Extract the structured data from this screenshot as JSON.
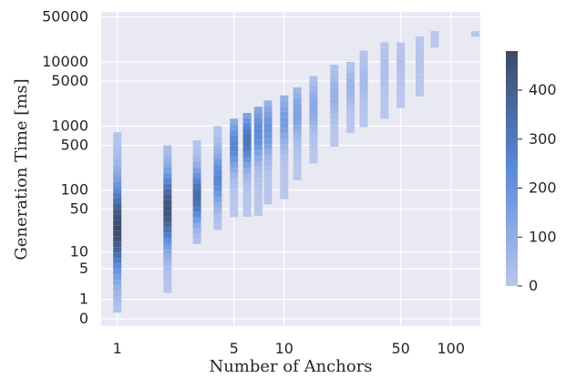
{
  "chart_data": {
    "type": "heatmap",
    "title": "",
    "xlabel": "Number of Anchors",
    "ylabel": "Generation Time [ms]",
    "x_scale": "log",
    "y_scale": "symlog",
    "xlim": [
      0.8,
      150
    ],
    "ylim": [
      -0.3,
      60000
    ],
    "x_ticks": [
      1,
      5,
      10,
      50,
      100
    ],
    "x_tick_labels": [
      "1",
      "5",
      "10",
      "50",
      "100"
    ],
    "y_ticks": [
      0,
      1,
      5,
      10,
      50,
      100,
      500,
      1000,
      5000,
      10000,
      50000
    ],
    "y_tick_labels": [
      "0",
      "1",
      "5",
      "10",
      "50",
      "100",
      "500",
      "1000",
      "5000",
      "10000",
      "50000"
    ],
    "grid": true,
    "background_color": "#e8e9f3",
    "colorbar": {
      "min": 0,
      "max": 480,
      "ticks": [
        0,
        100,
        200,
        300,
        400
      ],
      "tick_labels": [
        "0",
        "100",
        "200",
        "300",
        "400"
      ],
      "color_low": "#b9c6ec",
      "color_mid": "#5a8ad9",
      "color_high": "#3b4a66"
    },
    "columns": [
      {
        "x": 1,
        "y_min": 0.5,
        "y_max": 800,
        "peak_y": 25,
        "peak_count": 470
      },
      {
        "x": 2,
        "y_min": 2,
        "y_max": 500,
        "peak_y": 50,
        "peak_count": 440
      },
      {
        "x": 3,
        "y_min": 15,
        "y_max": 600,
        "peak_y": 80,
        "peak_count": 350
      },
      {
        "x": 4,
        "y_min": 25,
        "y_max": 1000,
        "peak_y": 150,
        "peak_count": 250
      },
      {
        "x": 5,
        "y_min": 40,
        "y_max": 1300,
        "peak_y": 500,
        "peak_count": 260
      },
      {
        "x": 6,
        "y_min": 40,
        "y_max": 1600,
        "peak_y": 600,
        "peak_count": 320
      },
      {
        "x": 7,
        "y_min": 40,
        "y_max": 2000,
        "peak_y": 800,
        "peak_count": 240
      },
      {
        "x": 8,
        "y_min": 60,
        "y_max": 2500,
        "peak_y": 900,
        "peak_count": 200
      },
      {
        "x": 10,
        "y_min": 80,
        "y_max": 3000,
        "peak_y": 1200,
        "peak_count": 170
      },
      {
        "x": 12,
        "y_min": 150,
        "y_max": 4000,
        "peak_y": 1600,
        "peak_count": 150
      },
      {
        "x": 15,
        "y_min": 300,
        "y_max": 6000,
        "peak_y": 2000,
        "peak_count": 120
      },
      {
        "x": 20,
        "y_min": 500,
        "y_max": 9000,
        "peak_y": 3000,
        "peak_count": 90
      },
      {
        "x": 25,
        "y_min": 800,
        "y_max": 10000,
        "peak_y": 4000,
        "peak_count": 70
      },
      {
        "x": 30,
        "y_min": 1000,
        "y_max": 15000,
        "peak_y": 5000,
        "peak_count": 50
      },
      {
        "x": 40,
        "y_min": 1500,
        "y_max": 20000,
        "peak_y": 7000,
        "peak_count": 30
      },
      {
        "x": 50,
        "y_min": 2000,
        "y_max": 20000,
        "peak_y": 9000,
        "peak_count": 20
      },
      {
        "x": 65,
        "y_min": 3000,
        "y_max": 25000,
        "peak_y": 10000,
        "peak_count": 10
      },
      {
        "x": 80,
        "y_min": 20000,
        "y_max": 30000,
        "peak_y": 25000,
        "peak_count": 4
      },
      {
        "x": 140,
        "y_min": 25000,
        "y_max": 30000,
        "peak_y": 27000,
        "peak_count": 2
      }
    ]
  }
}
